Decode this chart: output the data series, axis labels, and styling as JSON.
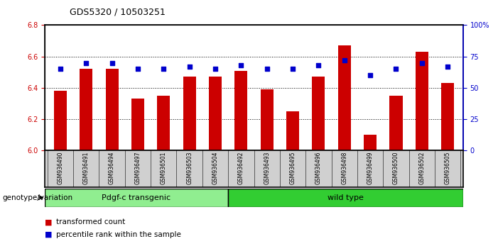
{
  "title": "GDS5320 / 10503251",
  "samples": [
    "GSM936490",
    "GSM936491",
    "GSM936494",
    "GSM936497",
    "GSM936501",
    "GSM936503",
    "GSM936504",
    "GSM936492",
    "GSM936493",
    "GSM936495",
    "GSM936496",
    "GSM936498",
    "GSM936499",
    "GSM936500",
    "GSM936502",
    "GSM936505"
  ],
  "transformed_count": [
    6.38,
    6.52,
    6.52,
    6.33,
    6.35,
    6.47,
    6.47,
    6.51,
    6.39,
    6.25,
    6.47,
    6.67,
    6.1,
    6.35,
    6.63,
    6.43
  ],
  "percentile_rank": [
    65,
    70,
    70,
    65,
    65,
    67,
    65,
    68,
    65,
    65,
    68,
    72,
    60,
    65,
    70,
    67
  ],
  "ylim_left": [
    6.0,
    6.8
  ],
  "ylim_right": [
    0,
    100
  ],
  "yticks_left": [
    6.0,
    6.2,
    6.4,
    6.6,
    6.8
  ],
  "yticks_right": [
    0,
    25,
    50,
    75,
    100
  ],
  "group1_label": "Pdgf-c transgenic",
  "group2_label": "wild type",
  "group1_count": 7,
  "group2_count": 9,
  "group1_color": "#90EE90",
  "group2_color": "#32CD32",
  "bar_color": "#CC0000",
  "dot_color": "#0000CC",
  "bar_width": 0.5,
  "dot_size": 18,
  "genotype_label": "genotype/variation",
  "legend_bar": "transformed count",
  "legend_dot": "percentile rank within the sample",
  "background_color": "#ffffff",
  "grid_color": "#000000",
  "ticklabel_color_left": "#CC0000",
  "ticklabel_color_right": "#0000CC"
}
